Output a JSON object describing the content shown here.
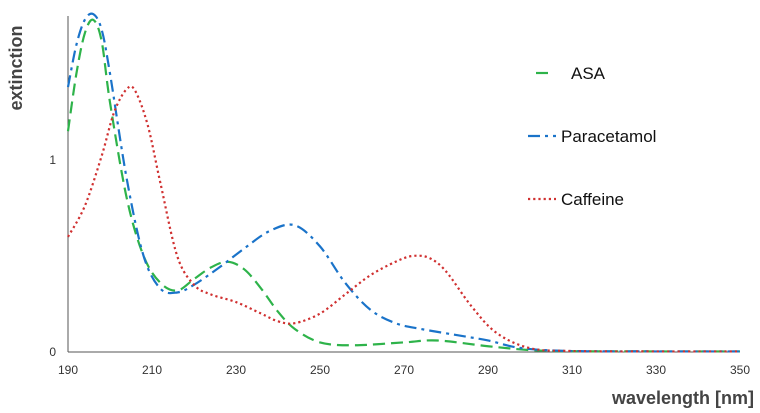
{
  "chart_data": {
    "type": "line",
    "xlabel": "wavelength [nm]",
    "ylabel": "extinction",
    "xlim": [
      190,
      350
    ],
    "ylim": [
      0,
      1.75
    ],
    "x_ticks": [
      190,
      210,
      230,
      250,
      270,
      290,
      310,
      330,
      350
    ],
    "y_ticks": [
      0,
      1
    ],
    "grid": false,
    "legend_position": "right",
    "series": [
      {
        "name": "ASA",
        "color": "#2eb34a",
        "dash": "dashed",
        "x": [
          190,
          192,
          194,
          196,
          198,
          200,
          204,
          208,
          212,
          216,
          220,
          224,
          228,
          232,
          236,
          240,
          244,
          250,
          258,
          270,
          278,
          290,
          300,
          310,
          330,
          350
        ],
        "y": [
          1.15,
          1.45,
          1.66,
          1.73,
          1.62,
          1.3,
          0.8,
          0.5,
          0.36,
          0.32,
          0.38,
          0.44,
          0.47,
          0.43,
          0.33,
          0.21,
          0.12,
          0.05,
          0.035,
          0.05,
          0.06,
          0.03,
          0.01,
          0.004,
          0.003,
          0.003
        ]
      },
      {
        "name": "Paracetamol",
        "color": "#1a73c9",
        "dash": "dashdot",
        "x": [
          190,
          192,
          194,
          196,
          198,
          200,
          204,
          208,
          212,
          216,
          220,
          226,
          232,
          238,
          244,
          250,
          256,
          262,
          268,
          274,
          282,
          290,
          298,
          310,
          330,
          350
        ],
        "y": [
          1.38,
          1.6,
          1.73,
          1.76,
          1.68,
          1.45,
          0.9,
          0.5,
          0.33,
          0.31,
          0.35,
          0.44,
          0.54,
          0.63,
          0.66,
          0.55,
          0.36,
          0.22,
          0.15,
          0.12,
          0.09,
          0.06,
          0.02,
          0.005,
          0.003,
          0.003
        ]
      },
      {
        "name": "Caffeine",
        "color": "#d03030",
        "dash": "dotted",
        "x": [
          190,
          194,
          198,
          201,
          204,
          206,
          209,
          212,
          216,
          220,
          224,
          230,
          236,
          240,
          244,
          250,
          256,
          262,
          268,
          272,
          276,
          280,
          286,
          292,
          300,
          310,
          330,
          350
        ],
        "y": [
          0.6,
          0.76,
          1.02,
          1.25,
          1.37,
          1.36,
          1.18,
          0.88,
          0.5,
          0.35,
          0.3,
          0.26,
          0.2,
          0.16,
          0.15,
          0.2,
          0.3,
          0.4,
          0.47,
          0.5,
          0.49,
          0.42,
          0.24,
          0.1,
          0.02,
          0.005,
          0.003,
          0.003
        ]
      }
    ]
  }
}
